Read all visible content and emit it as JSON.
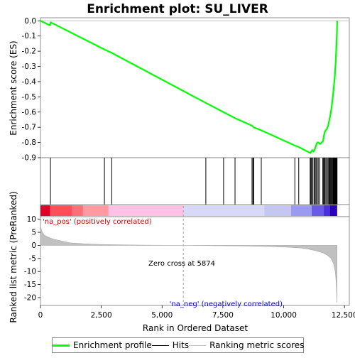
{
  "chart_data": {
    "type": "line",
    "title": "Enrichment plot: SU_LIVER",
    "enrichment_panel": {
      "ylabel": "Enrichment score (ES)",
      "ylim": [
        -0.9,
        0.02
      ],
      "yticks": [
        0.0,
        -0.1,
        -0.2,
        -0.3,
        -0.4,
        -0.5,
        -0.6,
        -0.7,
        -0.8,
        -0.9
      ],
      "ytick_labels": [
        "0.0",
        "-0.1",
        "-0.2",
        "-0.3",
        "-0.4",
        "-0.5",
        "-0.6",
        "-0.7",
        "-0.8",
        "-0.9"
      ],
      "series": [
        {
          "name": "Enrichment profile",
          "color": "#00ff00",
          "x": [
            0,
            390,
            420,
            2650,
            2920,
            6800,
            7520,
            8000,
            8700,
            8760,
            9080,
            10460,
            10620,
            11100,
            11130,
            11180,
            11230,
            11290,
            11330,
            11380,
            11430,
            11500,
            11620,
            11650,
            11690,
            11730,
            11780,
            11830,
            11880,
            11920,
            11960,
            12000,
            12040,
            12070,
            12110,
            12140,
            12170,
            12190,
            12200
          ],
          "y": [
            0.0,
            -0.03,
            -0.01,
            -0.19,
            -0.21,
            -0.54,
            -0.6,
            -0.64,
            -0.69,
            -0.7,
            -0.72,
            -0.82,
            -0.83,
            -0.87,
            -0.86,
            -0.85,
            -0.86,
            -0.84,
            -0.82,
            -0.8,
            -0.8,
            -0.81,
            -0.79,
            -0.76,
            -0.73,
            -0.72,
            -0.71,
            -0.69,
            -0.65,
            -0.62,
            -0.58,
            -0.53,
            -0.47,
            -0.42,
            -0.35,
            -0.27,
            -0.16,
            -0.08,
            0.0
          ]
        }
      ]
    },
    "hits": {
      "name": "Hits",
      "positions": [
        410,
        2630,
        2930,
        6800,
        7530,
        8000,
        8700,
        8740,
        8770,
        9080,
        10460,
        10620,
        11090,
        11120,
        11150,
        11200,
        11250,
        11290,
        11330,
        11370,
        11420,
        11480,
        11610,
        11640,
        11670,
        11700,
        11740,
        11790,
        11830,
        11870,
        11900,
        11930,
        11960,
        11990,
        12010,
        12040,
        12060,
        12080,
        12100,
        12120,
        12140,
        12160,
        12180,
        12195
      ]
    },
    "rank_panel": {
      "ylabel": "Ranked list metric (PreRanked)",
      "xlabel": "Rank in Ordered Dataset",
      "ylim": [
        -23,
        11
      ],
      "yticks": [
        10,
        5,
        0,
        -5,
        -10,
        -15,
        -20
      ],
      "ytick_labels": [
        "10",
        "5",
        "0",
        "-5",
        "-10",
        "-15",
        "-20"
      ],
      "xlim": [
        0,
        12700
      ],
      "xticks": [
        0,
        2500,
        5000,
        7500,
        10000,
        12500
      ],
      "xtick_labels": [
        "0",
        "2,500",
        "5,000",
        "7,500",
        "10,000",
        "12,500"
      ],
      "metric_x": [
        0,
        50,
        150,
        300,
        500,
        800,
        1200,
        1800,
        2500,
        3500,
        4500,
        5874,
        7000,
        8500,
        9500,
        10200,
        10700,
        11000,
        11300,
        11600,
        11800,
        11950,
        12050,
        12120,
        12160,
        12180,
        12195
      ],
      "metric_y": [
        7.5,
        5.5,
        4.0,
        3.2,
        2.5,
        1.8,
        1.0,
        0.6,
        0.35,
        0.18,
        0.08,
        0.0,
        -0.1,
        -0.25,
        -0.45,
        -0.7,
        -1.0,
        -1.4,
        -2.0,
        -2.8,
        -3.8,
        -5.0,
        -7.0,
        -10.0,
        -14.0,
        -18.0,
        -22.0
      ],
      "zero_cross_rank": 5874,
      "zero_cross_label": "Zero cross at 5874",
      "pos_label": "'na_pos' (positively correlated)",
      "neg_label": "'na_neg' (negatively correlated)",
      "ranking_series_name": "Ranking metric scores",
      "colors": {
        "pos_label": "#cc0000",
        "neg_label": "#0000cc",
        "metric_fill": "#c0c0c0",
        "zero_cross_line": "#a0a0a0"
      }
    },
    "heat_band": {
      "segments": [
        {
          "x0": 0,
          "x1": 400,
          "color": "#e0002a"
        },
        {
          "x0": 400,
          "x1": 1300,
          "color": "#ff4d5a"
        },
        {
          "x0": 1300,
          "x1": 1750,
          "color": "#ff6f78"
        },
        {
          "x0": 1750,
          "x1": 2800,
          "color": "#ff9aa2"
        },
        {
          "x0": 2800,
          "x1": 5874,
          "color": "#ffc2e6"
        },
        {
          "x0": 5874,
          "x1": 9200,
          "color": "#d8d8f8"
        },
        {
          "x0": 9200,
          "x1": 10300,
          "color": "#c6c6f2"
        },
        {
          "x0": 10300,
          "x1": 11150,
          "color": "#9a9af0"
        },
        {
          "x0": 11150,
          "x1": 11650,
          "color": "#6a5ae8"
        },
        {
          "x0": 11650,
          "x1": 11900,
          "color": "#4a30e0"
        },
        {
          "x0": 11900,
          "x1": 12200,
          "color": "#2a00b8"
        }
      ]
    }
  },
  "legend": {
    "items": [
      {
        "label": "Enrichment profile",
        "color": "#00ff00",
        "thickness": 3
      },
      {
        "label": "Hits",
        "color": "#000000",
        "thickness": 1
      },
      {
        "label": "Ranking metric scores",
        "color": "#c0c0c0",
        "thickness": 1
      }
    ]
  }
}
